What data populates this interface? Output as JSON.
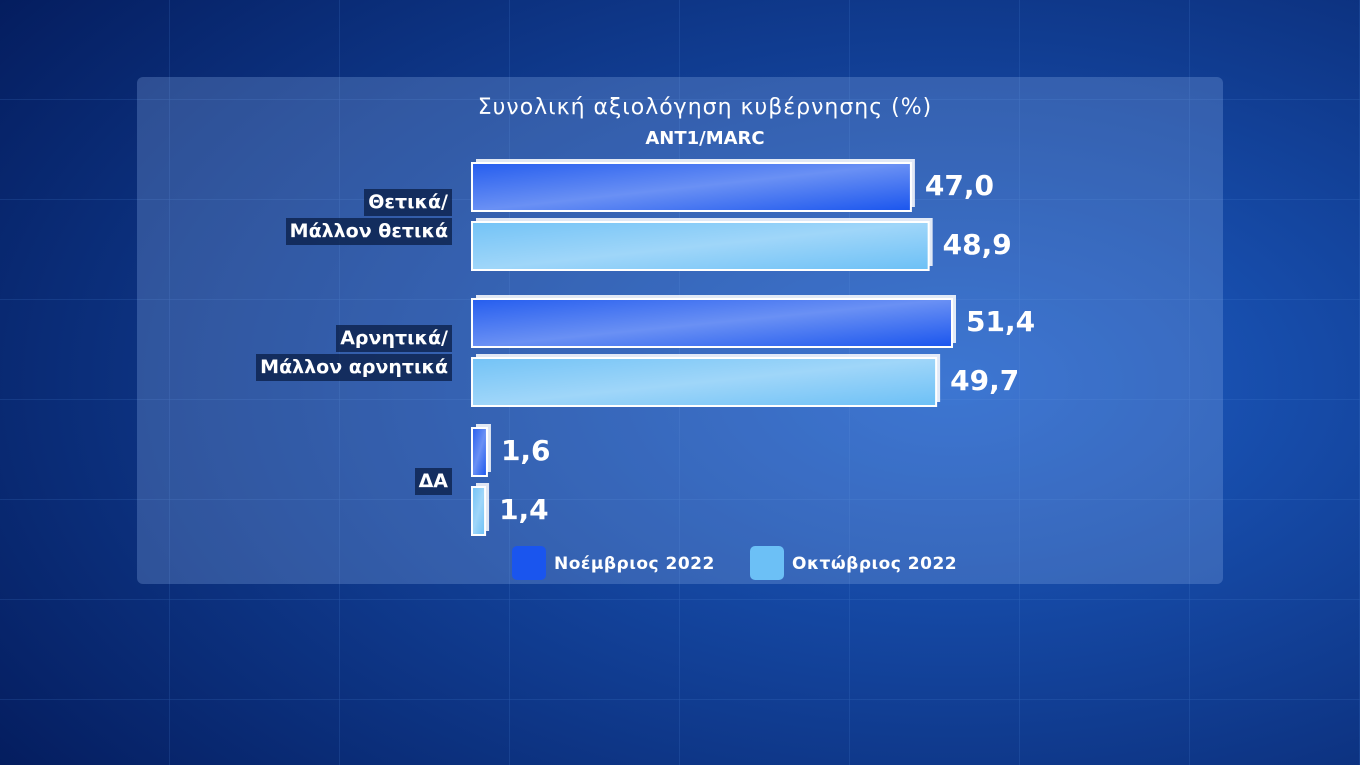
{
  "chart_data": {
    "type": "bar",
    "orientation": "horizontal",
    "title": "Συνολική αξιολόγηση κυβέρνησης (%)",
    "subtitle": "ANT1/MARC",
    "categories": [
      [
        "Θετικά/",
        "Μάλλον θετικά"
      ],
      [
        "Αρνητικά/",
        "Μάλλον αρνητικά"
      ],
      [
        "ΔΑ"
      ]
    ],
    "series": [
      {
        "name": "Νοέμβριος 2022",
        "color": "#1a55ee",
        "values": [
          47.0,
          51.4,
          1.6
        ],
        "value_labels": [
          "47,0",
          "51,4",
          "1,6"
        ]
      },
      {
        "name": "Οκτώβριος 2022",
        "color": "#6cc0f6",
        "values": [
          48.9,
          49.7,
          1.4
        ],
        "value_labels": [
          "48,9",
          "49,7",
          "1,4"
        ]
      }
    ],
    "legend": "bottom"
  }
}
